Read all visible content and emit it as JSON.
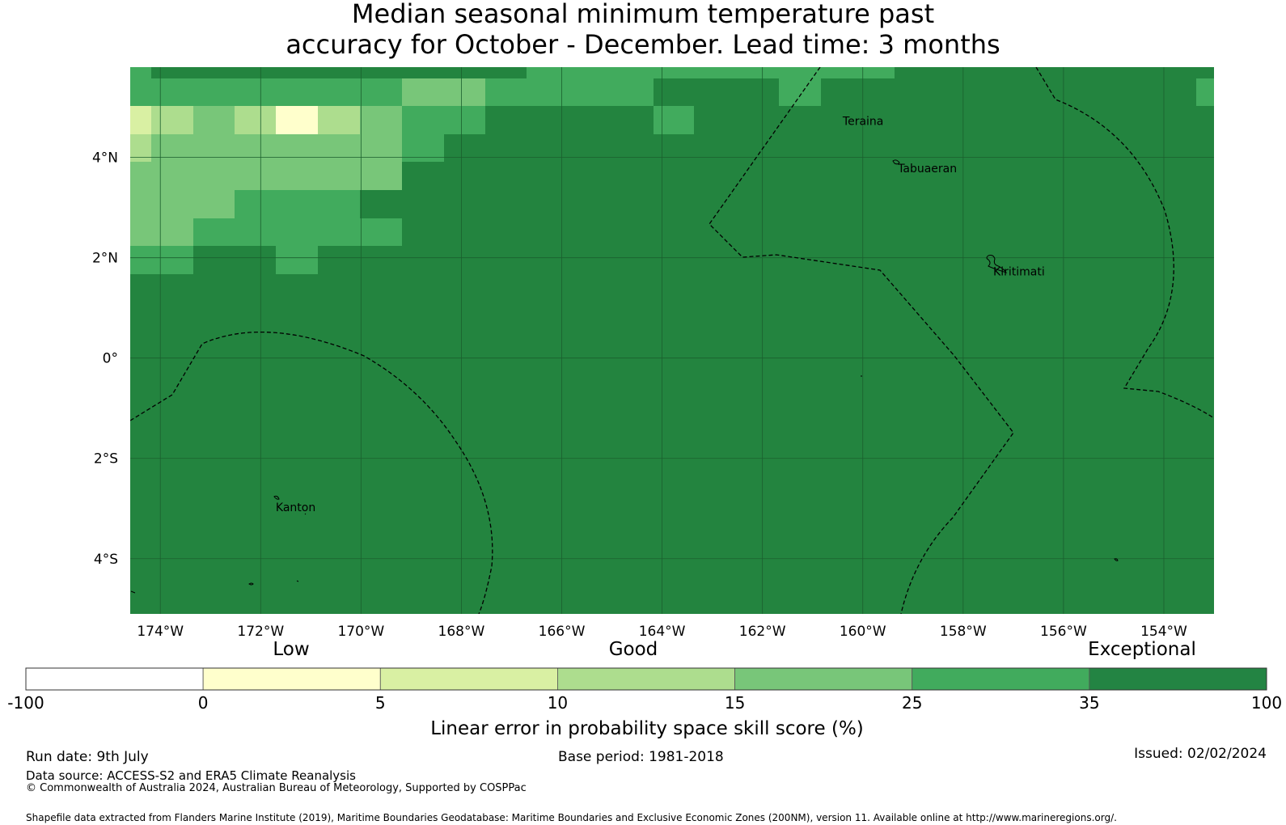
{
  "title": {
    "line1": "Median seasonal minimum temperature past",
    "line2": "accuracy for October - December. Lead time: 3 months"
  },
  "map": {
    "lon_range": [
      -174.6,
      -153.0
    ],
    "lat_range": [
      -5.1,
      5.8
    ],
    "lon_ticks": [
      {
        "value": -174,
        "label": "174°W"
      },
      {
        "value": -172,
        "label": "172°W"
      },
      {
        "value": -170,
        "label": "170°W"
      },
      {
        "value": -168,
        "label": "168°W"
      },
      {
        "value": -166,
        "label": "166°W"
      },
      {
        "value": -164,
        "label": "164°W"
      },
      {
        "value": -162,
        "label": "162°W"
      },
      {
        "value": -160,
        "label": "160°W"
      },
      {
        "value": -158,
        "label": "158°W"
      },
      {
        "value": -156,
        "label": "156°W"
      },
      {
        "value": -154,
        "label": "154°W"
      }
    ],
    "lat_ticks": [
      {
        "value": 4,
        "label": "4°N"
      },
      {
        "value": 2,
        "label": "2°N"
      },
      {
        "value": 0,
        "label": "0°"
      },
      {
        "value": -2,
        "label": "2°S"
      },
      {
        "value": -4,
        "label": "4°S"
      }
    ],
    "places": [
      {
        "name": "Teraina",
        "lon": -160.4,
        "lat": 4.65
      },
      {
        "name": "Tabuaeran",
        "lon": -159.3,
        "lat": 3.7
      },
      {
        "name": "Kiritimati",
        "lon": -157.4,
        "lat": 1.65
      },
      {
        "name": "Kanton",
        "lon": -171.7,
        "lat": -3.05
      }
    ],
    "background_color": "#23843f"
  },
  "legend": {
    "category_labels": [
      "Low",
      "Good",
      "Exceptional"
    ],
    "boundaries": [
      "-100",
      "0",
      "5",
      "10",
      "15",
      "25",
      "35",
      "100"
    ],
    "colors": [
      "#ffffff",
      "#ffffcc",
      "#d9f0a3",
      "#addd8e",
      "#78c679",
      "#41ab5d",
      "#238443"
    ],
    "axis_label": "Linear error in probability space skill score (%)"
  },
  "footer": {
    "run_date": "Run date: 9th July",
    "base_period": "Base period: 1981-2018",
    "issued": "Issued: 02/02/2024",
    "data_source": "Data source: ACCESS-S2 and ERA5 Climate Reanalysis",
    "copyright": "© Commonwealth of Australia 2024, Australian Bureau of Meteorology, Supported by COSPPac",
    "shapefile": "Shapefile data extracted from Flanders Marine Institute (2019), Maritime Boundaries Geodatabase: Maritime Boundaries and Exclusive Economic Zones (200NM), version 11. Available online at http://www.marineregions.org/."
  }
}
